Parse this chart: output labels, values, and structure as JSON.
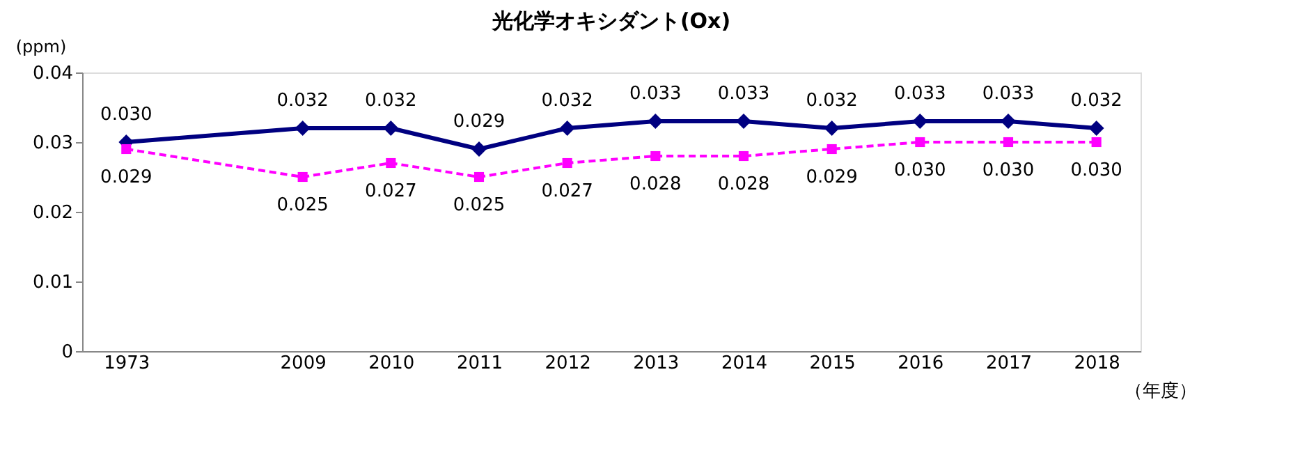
{
  "chart_data": {
    "type": "line",
    "title": "光化学オキシダント(Ox)",
    "ylabel": "(ppm)",
    "xlabel": "（年度）",
    "categories": [
      "1973",
      null,
      "2009",
      "2010",
      "2011",
      "2012",
      "2013",
      "2014",
      "2015",
      "2016",
      "2017",
      "2018"
    ],
    "ylim": [
      0,
      0.04
    ],
    "yticks": [
      0,
      0.01,
      0.02,
      0.03,
      0.04
    ],
    "grid": false,
    "series": [
      {
        "color": "#000080",
        "marker": "diamond",
        "line_style": "solid",
        "values": [
          0.03,
          null,
          0.032,
          0.032,
          0.029,
          0.032,
          0.033,
          0.033,
          0.032,
          0.033,
          0.033,
          0.032
        ],
        "value_labels": [
          "0.030",
          null,
          "0.032",
          "0.032",
          "0.029",
          "0.032",
          "0.033",
          "0.033",
          "0.032",
          "0.033",
          "0.033",
          "0.032"
        ]
      },
      {
        "color": "#ff00ff",
        "marker": "square",
        "line_style": "dashed",
        "values": [
          0.029,
          null,
          0.025,
          0.027,
          0.025,
          0.027,
          0.028,
          0.028,
          0.029,
          0.03,
          0.03,
          0.03
        ],
        "value_labels": [
          "0.029",
          null,
          "0.025",
          "0.027",
          "0.025",
          "0.027",
          "0.028",
          "0.028",
          "0.029",
          "0.030",
          "0.030",
          "0.030"
        ]
      }
    ]
  }
}
